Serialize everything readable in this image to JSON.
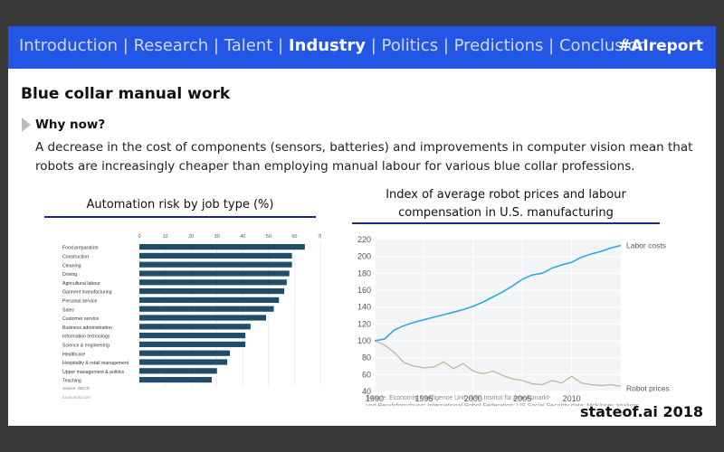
{
  "nav": {
    "items": [
      "Introduction",
      "Research",
      "Talent",
      "Industry",
      "Politics",
      "Predictions",
      "Conclusion"
    ],
    "active": "Industry",
    "separator": "|",
    "hashtag": "#AIreport"
  },
  "slide": {
    "title": "Blue collar manual work",
    "subheading": "Why now?",
    "body": "A decrease in the cost of components (sensors, batteries) and improvements in computer vision mean that robots are increasingly cheaper than employing manual labour for various blue collar professions."
  },
  "footer": "stateof.ai 2018",
  "chart_data": [
    {
      "type": "bar",
      "orientation": "horizontal",
      "title": "Automation risk by job type (%)",
      "xlim": [
        0,
        70
      ],
      "xticks": [
        0,
        10,
        20,
        30,
        40,
        50,
        60,
        70
      ],
      "categories": [
        "Food preparation",
        "Construction",
        "Cleaning",
        "Driving",
        "Agricultural labour",
        "Garment manufacturing",
        "Personal service",
        "Sales",
        "Customer service",
        "Business administration",
        "Information technology",
        "Science & engineering",
        "Healthcare",
        "Hospitality & retail management",
        "Upper management & politics",
        "Teaching"
      ],
      "values": [
        64,
        59,
        59,
        58,
        57,
        56,
        54,
        52,
        49,
        43,
        41,
        41,
        35,
        34,
        30,
        28
      ],
      "source": "Source: OECD",
      "credit": "Economist.com",
      "bar_color": "#1f4e6b"
    },
    {
      "type": "line",
      "title": "Index of average robot prices and labour compensation in U.S. manufacturing",
      "xlim": [
        1990,
        2015
      ],
      "ylim": [
        40,
        220
      ],
      "xticks": [
        1990,
        1995,
        2000,
        2005,
        2010
      ],
      "yticks": [
        40,
        60,
        80,
        100,
        120,
        140,
        160,
        180,
        200,
        220
      ],
      "x": [
        1990,
        1991,
        1992,
        1993,
        1994,
        1995,
        1996,
        1997,
        1998,
        1999,
        2000,
        2001,
        2002,
        2003,
        2004,
        2005,
        2006,
        2007,
        2008,
        2009,
        2010,
        2011,
        2012,
        2013,
        2014,
        2015
      ],
      "series": [
        {
          "name": "Labor costs",
          "color": "#29abe2",
          "values": [
            100,
            102,
            113,
            118,
            122,
            125,
            128,
            131,
            134,
            137,
            141,
            146,
            152,
            158,
            165,
            173,
            178,
            180,
            186,
            190,
            193,
            199,
            203,
            206,
            210,
            213
          ]
        },
        {
          "name": "Robot prices",
          "color": "#c0b29a",
          "values": [
            100,
            95,
            86,
            74,
            70,
            68,
            69,
            75,
            67,
            73,
            64,
            61,
            64,
            59,
            55,
            53,
            49,
            48,
            53,
            50,
            58,
            50,
            48,
            47,
            48,
            46
          ]
        }
      ],
      "source": "Source: Economist Intelligence Unit; IMB; Institut für Arbeitsmarkt- und Berufsforschung; International Robot Federation; US Social Security data; McKinsey analysis"
    }
  ]
}
